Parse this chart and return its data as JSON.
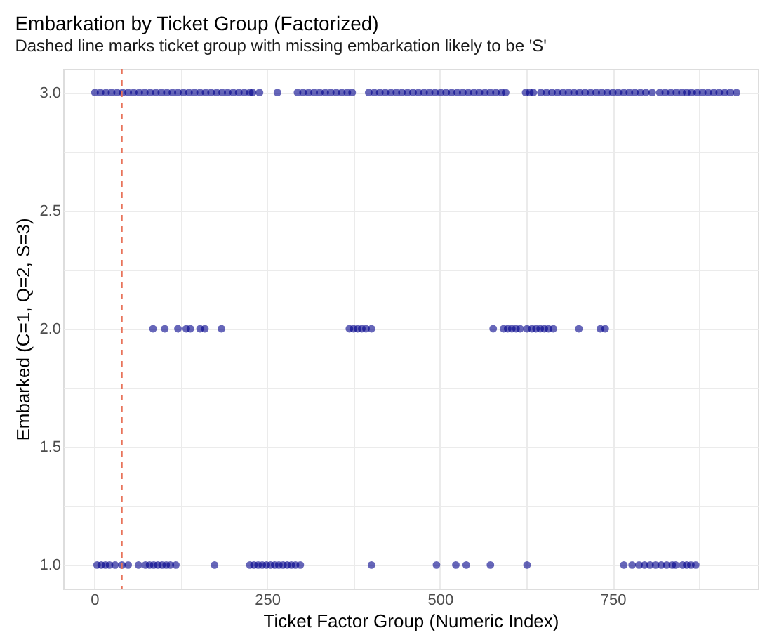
{
  "chart_data": {
    "type": "scatter",
    "title": "Embarkation by Ticket Group (Factorized)",
    "subtitle": "Dashed line marks ticket group with missing embarkation likely to be 'S'",
    "xlabel": "Ticket Factor Group (Numeric Index)",
    "ylabel": "Embarked (C=1, Q=2, S=3)",
    "xlim": [
      -45,
      960
    ],
    "ylim": [
      0.9,
      3.1
    ],
    "xticks": [
      0,
      {
        "value": 125,
        "label": null
      },
      250,
      {
        "value": 375,
        "label": null
      },
      500,
      {
        "value": 625,
        "label": null
      },
      750,
      {
        "value": 875,
        "label": null
      }
    ],
    "yticks": [
      {
        "value": 1,
        "label": "1.0"
      },
      {
        "value": 1.25,
        "label": null
      },
      {
        "value": 1.5,
        "label": "1.5"
      },
      {
        "value": 1.75,
        "label": null
      },
      {
        "value": 2,
        "label": "2.0"
      },
      {
        "value": 2.25,
        "label": null
      },
      {
        "value": 2.5,
        "label": "2.5"
      },
      {
        "value": 2.75,
        "label": null
      },
      {
        "value": 3,
        "label": "3.0"
      }
    ],
    "grid": true,
    "legend": false,
    "marker": "circle",
    "series": [
      {
        "color": "#00008b",
        "x": [
          1,
          9,
          17,
          25,
          33,
          41,
          49,
          57,
          65,
          73,
          81,
          89,
          97,
          105,
          113,
          121,
          129,
          137,
          145,
          153,
          161,
          169,
          177,
          185,
          193,
          201,
          209,
          217,
          225,
          229,
          239,
          265,
          294,
          302,
          310,
          318,
          326,
          334,
          342,
          350,
          358,
          366,
          373,
          397,
          405,
          413,
          421,
          429,
          437,
          445,
          453,
          461,
          469,
          477,
          485,
          493,
          501,
          509,
          517,
          525,
          533,
          541,
          549,
          557,
          565,
          573,
          581,
          589,
          595,
          624,
          630,
          635,
          646,
          654,
          662,
          670,
          678,
          686,
          694,
          702,
          710,
          718,
          726,
          734,
          742,
          750,
          758,
          766,
          774,
          782,
          790,
          798,
          807,
          818,
          826,
          834,
          842,
          850,
          857,
          864,
          872,
          880,
          888,
          896,
          904,
          912,
          920,
          929
        ],
        "values": [
          3,
          3,
          3,
          3,
          3,
          3,
          3,
          3,
          3,
          3,
          3,
          3,
          3,
          3,
          3,
          3,
          3,
          3,
          3,
          3,
          3,
          3,
          3,
          3,
          3,
          3,
          3,
          3,
          3,
          3,
          3,
          3,
          3,
          3,
          3,
          3,
          3,
          3,
          3,
          3,
          3,
          3,
          3,
          3,
          3,
          3,
          3,
          3,
          3,
          3,
          3,
          3,
          3,
          3,
          3,
          3,
          3,
          3,
          3,
          3,
          3,
          3,
          3,
          3,
          3,
          3,
          3,
          3,
          3,
          3,
          3,
          3,
          3,
          3,
          3,
          3,
          3,
          3,
          3,
          3,
          3,
          3,
          3,
          3,
          3,
          3,
          3,
          3,
          3,
          3,
          3,
          3,
          3,
          3,
          3,
          3,
          3,
          3,
          3,
          3,
          3,
          3,
          3,
          3,
          3,
          3,
          3,
          3
        ]
      },
      {
        "color": "#00008b",
        "x": [
          85,
          102,
          121,
          133,
          139,
          153,
          160,
          184,
          369,
          375,
          381,
          387,
          393,
          401,
          577,
          592,
          598,
          604,
          610,
          616,
          626,
          633,
          639,
          645,
          651,
          657,
          664,
          701,
          732,
          739
        ],
        "values": [
          2,
          2,
          2,
          2,
          2,
          2,
          2,
          2,
          2,
          2,
          2,
          2,
          2,
          2,
          2,
          2,
          2,
          2,
          2,
          2,
          2,
          2,
          2,
          2,
          2,
          2,
          2,
          2,
          2,
          2
        ]
      },
      {
        "color": "#00008b",
        "x": [
          4,
          10,
          16,
          22,
          30,
          40,
          49,
          64,
          74,
          80,
          86,
          92,
          98,
          104,
          110,
          118,
          174,
          225,
          231,
          237,
          243,
          249,
          255,
          261,
          267,
          273,
          279,
          285,
          291,
          298,
          401,
          495,
          523,
          538,
          573,
          626,
          766,
          778,
          788,
          796,
          804,
          812,
          820,
          828,
          836,
          841,
          851,
          857,
          863,
          870
        ],
        "values": [
          1,
          1,
          1,
          1,
          1,
          1,
          1,
          1,
          1,
          1,
          1,
          1,
          1,
          1,
          1,
          1,
          1,
          1,
          1,
          1,
          1,
          1,
          1,
          1,
          1,
          1,
          1,
          1,
          1,
          1,
          1,
          1,
          1,
          1,
          1,
          1,
          1,
          1,
          1,
          1,
          1,
          1,
          1,
          1,
          1,
          1,
          1,
          1,
          1,
          1
        ]
      }
    ],
    "ref_lines": [
      {
        "axis": "x",
        "value": 40,
        "color": "#e8735a",
        "line_style": "dashed"
      }
    ]
  }
}
